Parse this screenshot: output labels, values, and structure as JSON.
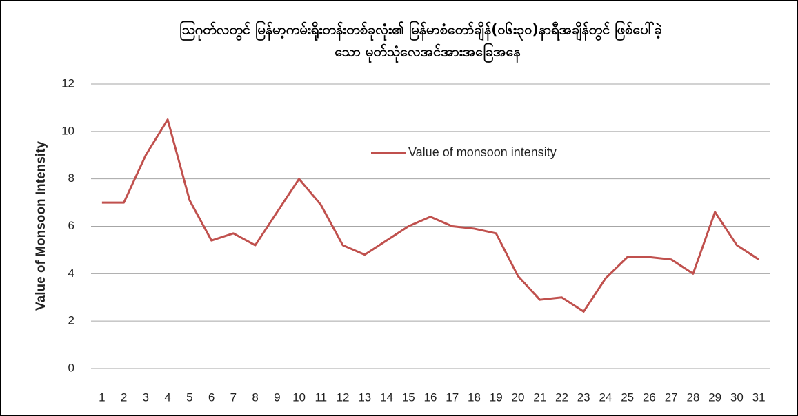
{
  "chart_data": {
    "type": "line",
    "title": [
      "ဩဂုတ်လတွင် မြန်မာ့ကမ်းရိုးတန်းတစ်ခုလုံး၏ မြန်မာစံတော်ချိန်(၀၆း၃၀)နာရီအချိန်တွင် ဖြစ်ပေါ်ခဲ့",
      "သော မုတ်သုံလေအင်အားအခြေအနေ"
    ],
    "y_label": "Value of Monsoon Intensity",
    "categories": [
      1,
      2,
      3,
      4,
      5,
      6,
      7,
      8,
      9,
      10,
      11,
      12,
      13,
      14,
      15,
      16,
      17,
      18,
      19,
      20,
      21,
      22,
      23,
      24,
      25,
      26,
      27,
      28,
      29,
      30,
      31
    ],
    "series": [
      {
        "name": "Value of monsoon intensity",
        "color": "#c0504d",
        "values": [
          7,
          7,
          9,
          10.5,
          7.1,
          5.4,
          5.7,
          5.2,
          6.6,
          8,
          6.9,
          5.2,
          4.8,
          5.4,
          6,
          6.4,
          6,
          5.9,
          5.7,
          3.9,
          2.9,
          3,
          2.4,
          3.8,
          4.7,
          4.7,
          4.6,
          4,
          6.6,
          5.2,
          4.6
        ]
      }
    ],
    "ylim": [
      0,
      12
    ],
    "yticks": [
      0,
      2,
      4,
      6,
      8,
      10,
      12
    ],
    "grid": true
  }
}
